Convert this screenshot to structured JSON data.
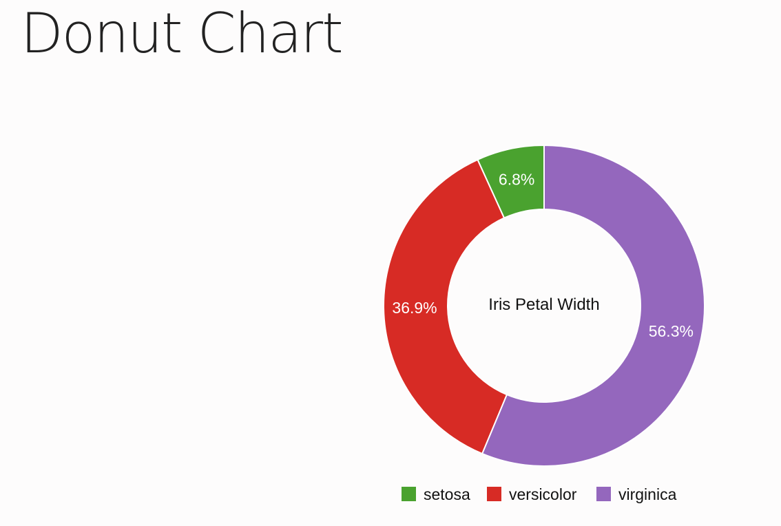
{
  "page": {
    "title": "Donut Chart"
  },
  "chart_data": {
    "type": "pie",
    "variant": "donut",
    "center_label": "Iris Petal Width",
    "categories": [
      "setosa",
      "versicolor",
      "virginica"
    ],
    "values": [
      6.8,
      36.9,
      56.3
    ],
    "value_labels": [
      "6.8%",
      "36.9%",
      "56.3%"
    ],
    "unit": "%",
    "colors": [
      "#4aa22f",
      "#d72b25",
      "#9467bd"
    ],
    "legend": {
      "placement": "bottom",
      "entries": [
        "setosa",
        "versicolor",
        "virginica"
      ]
    }
  }
}
